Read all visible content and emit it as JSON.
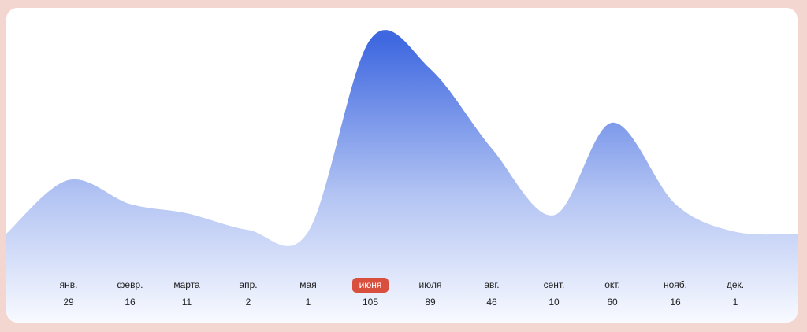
{
  "chart_data": {
    "type": "area",
    "categories": [
      "янв.",
      "февр.",
      "марта",
      "апр.",
      "мая",
      "июня",
      "июля",
      "авг.",
      "сент.",
      "окт.",
      "нояб.",
      "дек."
    ],
    "values": [
      29,
      16,
      11,
      2,
      1,
      105,
      89,
      46,
      10,
      60,
      16,
      1
    ],
    "color": "#3f68e0",
    "highlight": 5,
    "highlight_color": "#d94f3d"
  }
}
